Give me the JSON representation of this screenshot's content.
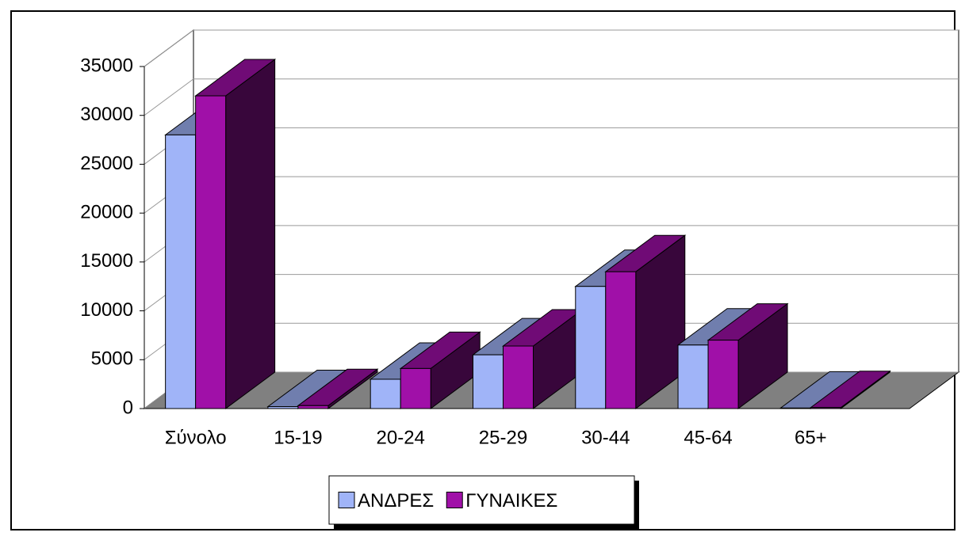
{
  "chart_data": {
    "type": "bar3d",
    "categories": [
      "Σύνολο",
      "15-19",
      "20-24",
      "25-29",
      "30-44",
      "45-64",
      "65+"
    ],
    "series": [
      {
        "name": "ΑΝΔΡΕΣ",
        "color": "#a0b4f8",
        "values": [
          28000,
          200,
          3000,
          5500,
          12500,
          6500,
          50
        ]
      },
      {
        "name": "ΓΥΝΑΙΚΕΣ",
        "color": "#a010a8",
        "values": [
          32000,
          300,
          4100,
          6400,
          14000,
          7000,
          100
        ]
      }
    ],
    "ylim": [
      0,
      35000
    ],
    "yticks": [
      0,
      5000,
      10000,
      15000,
      20000,
      25000,
      30000,
      35000
    ],
    "grid": true,
    "legend": "bottom"
  }
}
